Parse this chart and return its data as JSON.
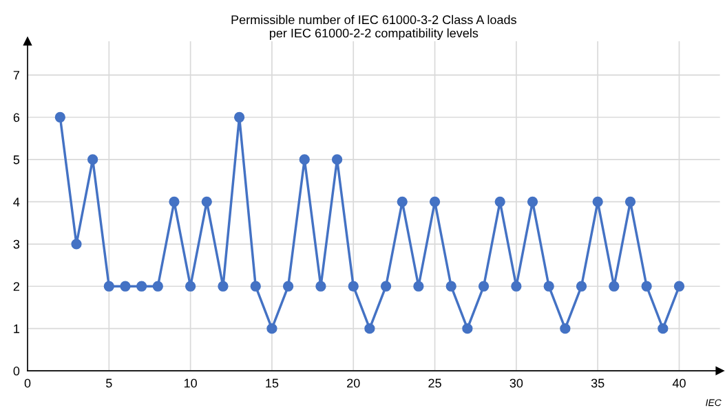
{
  "chart_data": {
    "type": "line",
    "title": "Permissible number of IEC 61000-3-2 Class A loads\nper IEC 61000-2-2 compatibility levels",
    "x": [
      2,
      3,
      4,
      5,
      6,
      7,
      8,
      9,
      10,
      11,
      12,
      13,
      14,
      15,
      16,
      17,
      18,
      19,
      20,
      21,
      22,
      23,
      24,
      25,
      26,
      27,
      28,
      29,
      30,
      31,
      32,
      33,
      34,
      35,
      36,
      37,
      38,
      39,
      40
    ],
    "series": [
      {
        "color": "#4472c4",
        "values": [
          6,
          3,
          5,
          2,
          2,
          2,
          2,
          4,
          2,
          4,
          2,
          6,
          2,
          1,
          2,
          5,
          2,
          5,
          2,
          1,
          2,
          4,
          2,
          4,
          2,
          1,
          2,
          4,
          2,
          4,
          2,
          1,
          2,
          4,
          2,
          4,
          2,
          1,
          2
        ]
      }
    ],
    "xlim": [
      0,
      42.5
    ],
    "ylim": [
      0,
      7.8
    ],
    "xticks": [
      0,
      5,
      10,
      15,
      20,
      25,
      30,
      35,
      40
    ],
    "yticks": [
      0,
      1,
      2,
      3,
      4,
      5,
      6,
      7
    ],
    "grid": true,
    "marker": "circle",
    "line_style": "solid",
    "annotations": [
      "IEC"
    ]
  }
}
